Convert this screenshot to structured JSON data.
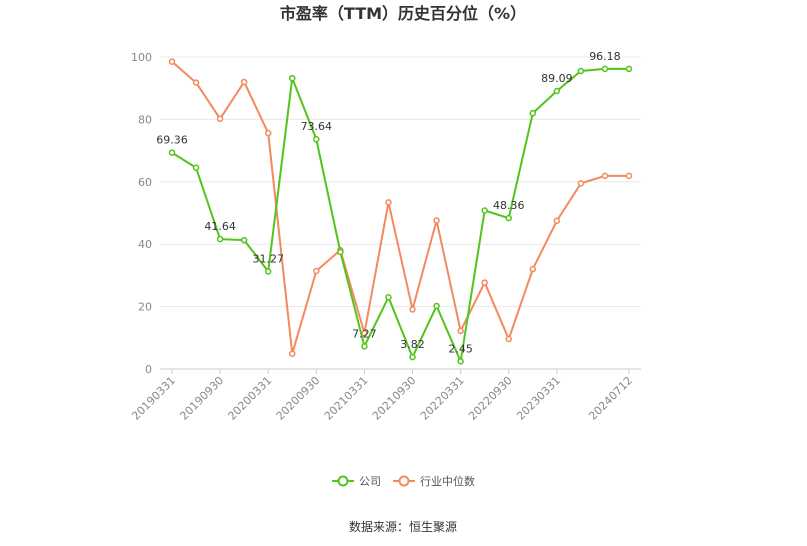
{
  "chart_data": {
    "type": "line",
    "title": "市盈率（TTM）历史百分位（%）",
    "source": "数据来源：恒生聚源",
    "ylim": [
      0,
      100
    ],
    "yticks": [
      0,
      20,
      40,
      60,
      80,
      100
    ],
    "grid": true,
    "legend_position": "bottom-center",
    "x": [
      "20190331",
      "20190630",
      "20190930",
      "20191231",
      "20200331",
      "20200630",
      "20200930",
      "20201231",
      "20210331",
      "20210630",
      "20210930",
      "20211231",
      "20220331",
      "20220630",
      "20220930",
      "20221231",
      "20230331",
      "20230630",
      "20231231",
      "20240712"
    ],
    "xtick_labels": [
      "20190331",
      "20190930",
      "20200331",
      "20200930",
      "20210331",
      "20210930",
      "20220331",
      "20220930",
      "20230331",
      "20240712"
    ],
    "series": [
      {
        "name": "公司",
        "color": "#52c41a",
        "values": [
          69.36,
          64.5,
          41.64,
          41.3,
          31.27,
          93.2,
          73.64,
          37.5,
          7.27,
          23.0,
          3.82,
          20.2,
          2.45,
          50.8,
          48.36,
          82.0,
          89.09,
          95.5,
          96.18,
          96.18
        ],
        "labels": {
          "0": "69.36",
          "2": "41.64",
          "4": "31.27",
          "6": "73.64",
          "8": "7.27",
          "10": "3.82",
          "12": "2.45",
          "14": "48.36",
          "16": "89.09",
          "18": "96.18"
        }
      },
      {
        "name": "行业中位数",
        "color": "#f4895f",
        "values": [
          98.5,
          91.8,
          80.2,
          92.0,
          75.6,
          4.9,
          31.4,
          38.1,
          11.5,
          53.4,
          19.1,
          47.6,
          12.2,
          27.7,
          9.6,
          32.0,
          47.5,
          59.5,
          61.9,
          61.9
        ]
      }
    ]
  }
}
